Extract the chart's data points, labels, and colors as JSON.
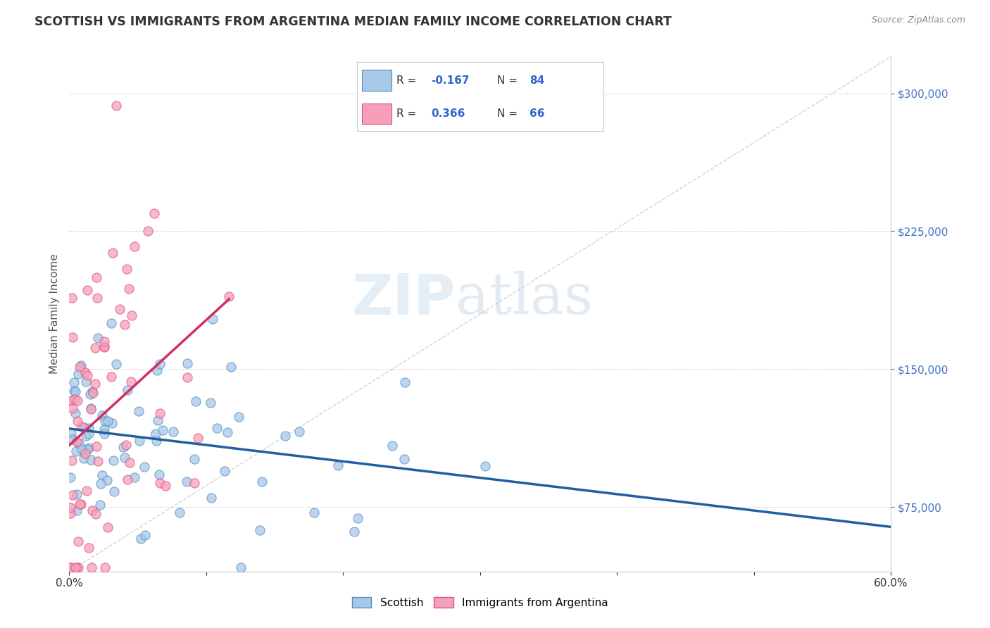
{
  "title": "SCOTTISH VS IMMIGRANTS FROM ARGENTINA MEDIAN FAMILY INCOME CORRELATION CHART",
  "source": "Source: ZipAtlas.com",
  "ylabel": "Median Family Income",
  "xlim": [
    0.0,
    0.6
  ],
  "ylim": [
    40000,
    320000
  ],
  "yticks": [
    75000,
    150000,
    225000,
    300000
  ],
  "ytick_labels": [
    "$75,000",
    "$150,000",
    "$225,000",
    "$300,000"
  ],
  "xticks": [
    0.0,
    0.1,
    0.2,
    0.3,
    0.4,
    0.5,
    0.6
  ],
  "xtick_labels": [
    "0.0%",
    "",
    "",
    "",
    "",
    "",
    "60.0%"
  ],
  "scottish_color": "#a8c8e8",
  "argentina_color": "#f5a0b8",
  "scottish_edge_color": "#5090c0",
  "argentina_edge_color": "#e05080",
  "scottish_trendline_color": "#2060a0",
  "argentina_trendline_color": "#d03060",
  "diagonal_line_color": "#c8c8c8",
  "background_color": "#ffffff",
  "grid_color": "#d8d8d8",
  "ytick_color": "#4472c4",
  "xtick_color": "#333333",
  "title_color": "#333333",
  "source_color": "#888888",
  "ylabel_color": "#555555",
  "legend_text_color": "#3366cc",
  "legend_R_color": "#cc3355",
  "R_scottish": -0.167,
  "N_scottish": 84,
  "R_argentina": 0.366,
  "N_argentina": 66,
  "scottish_seed": 42,
  "argentina_seed": 99,
  "watermark_zip_color": "#c8dff0",
  "watermark_atlas_color": "#b0c8dc"
}
